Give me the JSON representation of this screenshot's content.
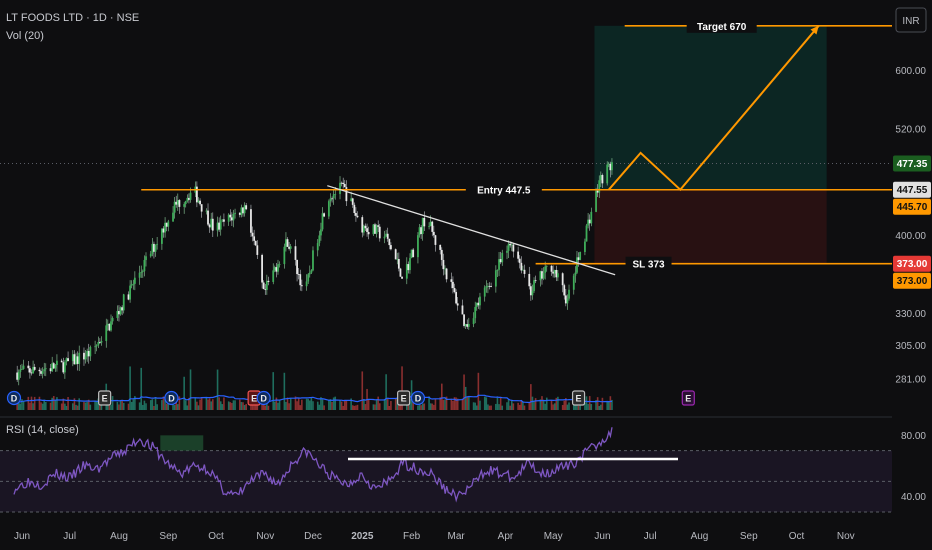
{
  "header": {
    "title": "LT FOODS LTD · 1D · NSE",
    "volume_label": "Vol (20)",
    "currency_button": "INR",
    "rsi_label": "RSI (14, close)"
  },
  "chart_data": {
    "type": "candlestick",
    "symbol": "LT FOODS LTD",
    "interval": "1D",
    "exchange": "NSE",
    "y_scale": "log",
    "price_ylim": [
      270,
      700
    ],
    "price_ticks": [
      "600.00",
      "520.00",
      "400.00",
      "330.00",
      "305.00",
      "281.00"
    ],
    "price_tick_values": [
      600,
      520,
      400,
      330,
      305,
      281
    ],
    "x_ticks": [
      "Jun",
      "Jul",
      "Aug",
      "Sep",
      "Oct",
      "Nov",
      "Dec",
      "2025",
      "Feb",
      "Mar",
      "Apr",
      "May",
      "Jun",
      "Jul",
      "Aug",
      "Sep",
      "Oct",
      "Nov"
    ],
    "price_path": [
      {
        "date": "2024-06-01",
        "close": 285
      },
      {
        "date": "2024-07-01",
        "close": 290
      },
      {
        "date": "2024-07-20",
        "close": 300
      },
      {
        "date": "2024-08-05",
        "close": 330
      },
      {
        "date": "2024-08-25",
        "close": 380
      },
      {
        "date": "2024-09-10",
        "close": 430
      },
      {
        "date": "2024-09-22",
        "close": 447
      },
      {
        "date": "2024-10-05",
        "close": 405
      },
      {
        "date": "2024-10-25",
        "close": 430
      },
      {
        "date": "2024-11-05",
        "close": 345
      },
      {
        "date": "2024-11-20",
        "close": 395
      },
      {
        "date": "2024-12-01",
        "close": 345
      },
      {
        "date": "2024-12-15",
        "close": 440
      },
      {
        "date": "2024-12-25",
        "close": 450
      },
      {
        "date": "2025-01-05",
        "close": 410
      },
      {
        "date": "2025-01-20",
        "close": 400
      },
      {
        "date": "2025-02-01",
        "close": 360
      },
      {
        "date": "2025-02-15",
        "close": 420
      },
      {
        "date": "2025-03-01",
        "close": 360
      },
      {
        "date": "2025-03-12",
        "close": 320
      },
      {
        "date": "2025-03-25",
        "close": 350
      },
      {
        "date": "2025-04-10",
        "close": 393
      },
      {
        "date": "2025-04-22",
        "close": 350
      },
      {
        "date": "2025-05-05",
        "close": 372
      },
      {
        "date": "2025-05-15",
        "close": 340
      },
      {
        "date": "2025-05-25",
        "close": 395
      },
      {
        "date": "2025-06-05",
        "close": 460
      },
      {
        "date": "2025-06-12",
        "close": 477
      }
    ],
    "levels": [
      {
        "name": "Target",
        "label": "Target 670",
        "value": 670
      },
      {
        "name": "Entry",
        "label": "Entry 447.5",
        "value": 447.5
      },
      {
        "name": "SL",
        "label": "SL 373",
        "value": 373
      }
    ],
    "price_tags": [
      {
        "label": "477.35",
        "value": 477.35,
        "color": "#1b5e20"
      },
      {
        "label": "447.55",
        "value": 447.55,
        "color": "#e0e0e0"
      },
      {
        "label": "445.70",
        "value": 445.7,
        "color": "#ff9800"
      },
      {
        "label": "373.00",
        "value": 373.0,
        "color": "#e53935"
      },
      {
        "label": "373.00",
        "value": 373.0,
        "color": "#ff9800"
      }
    ],
    "trendline": {
      "from": {
        "date": "2024-12-15",
        "value": 452
      },
      "to": {
        "date": "2025-06-14",
        "value": 363
      }
    },
    "projection_path": [
      {
        "date": "2025-06-10",
        "value": 447.5
      },
      {
        "date": "2025-06-30",
        "value": 490
      },
      {
        "date": "2025-07-25",
        "value": 447.5
      },
      {
        "date": "2025-10-20",
        "value": 670
      }
    ],
    "rsi": {
      "ylim": [
        30,
        90
      ],
      "ticks": [
        "80.00",
        "40.00"
      ],
      "tick_values": [
        80,
        40
      ],
      "bands": [
        70,
        50,
        30
      ],
      "path": [
        45,
        50,
        48,
        55,
        52,
        60,
        58,
        65,
        70,
        78,
        72,
        62,
        55,
        60,
        58,
        45,
        40,
        50,
        55,
        48,
        62,
        70,
        60,
        52,
        48,
        55,
        45,
        50,
        62,
        58,
        55,
        45,
        40,
        48,
        58,
        55,
        52,
        62,
        55,
        58,
        60,
        68,
        75,
        82
      ]
    },
    "event_markers": [
      {
        "kind": "D",
        "date": "2024-06-01"
      },
      {
        "kind": "E",
        "date": "2024-07-28"
      },
      {
        "kind": "D",
        "date": "2024-09-08"
      },
      {
        "kind": "E",
        "date": "2024-10-30"
      },
      {
        "kind": "D",
        "date": "2024-11-05"
      },
      {
        "kind": "E",
        "date": "2025-02-01"
      },
      {
        "kind": "D",
        "date": "2025-02-10"
      },
      {
        "kind": "E",
        "date": "2025-05-22"
      },
      {
        "kind": "E",
        "date": "2025-07-30"
      }
    ]
  },
  "colors": {
    "background": "#0e0e10",
    "up": "#26a69a",
    "down": "#ef5350",
    "level": "#ff9800",
    "rsi_line": "#7e57c2",
    "trendline": "#e0e0e0",
    "volume_ma": "#2962ff"
  }
}
